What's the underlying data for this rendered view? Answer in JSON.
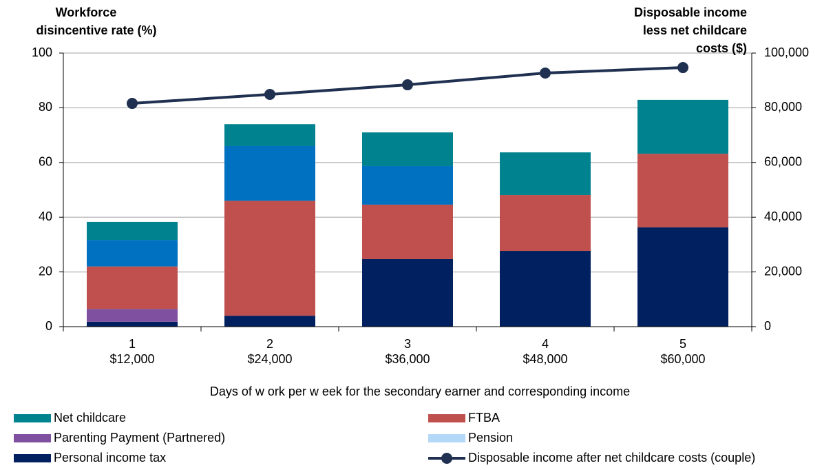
{
  "chart_data": {
    "type": "bar",
    "stacked": true,
    "y_label": [
      "Workforce",
      "disincentive rate (%)"
    ],
    "y2_label": [
      "Disposable income",
      "less net childcare",
      "costs ($)"
    ],
    "x_label": "Days of w ork per w eek for the secondary earner and corresponding income",
    "categories": [
      [
        "1",
        "$12,000"
      ],
      [
        "2",
        "$24,000"
      ],
      [
        "3",
        "$36,000"
      ],
      [
        "4",
        "$48,000"
      ],
      [
        "5",
        "$60,000"
      ]
    ],
    "ylim": [
      0,
      100
    ],
    "yticks": [
      0,
      20,
      40,
      60,
      80,
      100
    ],
    "y2lim": [
      0,
      100000
    ],
    "y2ticks": [
      0,
      {
        "value": 20000,
        "label": "20,000"
      },
      {
        "value": 40000,
        "label": "40,000"
      },
      {
        "value": 60000,
        "label": "60,000"
      },
      {
        "value": 80000,
        "label": "80,000"
      },
      {
        "value": 100000,
        "label": "100,000"
      }
    ],
    "grid": true,
    "series": [
      {
        "name": "Personal income tax",
        "color": "#002060",
        "values": [
          1.8,
          4.0,
          24.7,
          27.7,
          36.3
        ]
      },
      {
        "name": "Parenting Payment (Partnered)",
        "color": "#8050a0",
        "values": [
          4.7,
          0,
          0,
          0,
          0
        ]
      },
      {
        "name": "FTBA",
        "color": "#c0504d",
        "values": [
          15.5,
          42,
          19.9,
          20.4,
          26.9
        ]
      },
      {
        "name": "Pension",
        "color": "#b4d8f8",
        "values": [
          0,
          0,
          0,
          0,
          0
        ]
      },
      {
        "color": "#0070c0",
        "values": [
          9.7,
          20,
          14.1,
          0,
          0
        ]
      },
      {
        "name": "Net childcare",
        "color": "#00838f",
        "values": [
          6.6,
          8,
          12.3,
          15.6,
          19.7
        ]
      },
      {
        "name": "Disposable income after net childcare costs (couple)",
        "color": "#1f3050",
        "type": "line",
        "axis": "y2",
        "values": [
          81600,
          84900,
          88400,
          92700,
          94700
        ]
      }
    ]
  }
}
